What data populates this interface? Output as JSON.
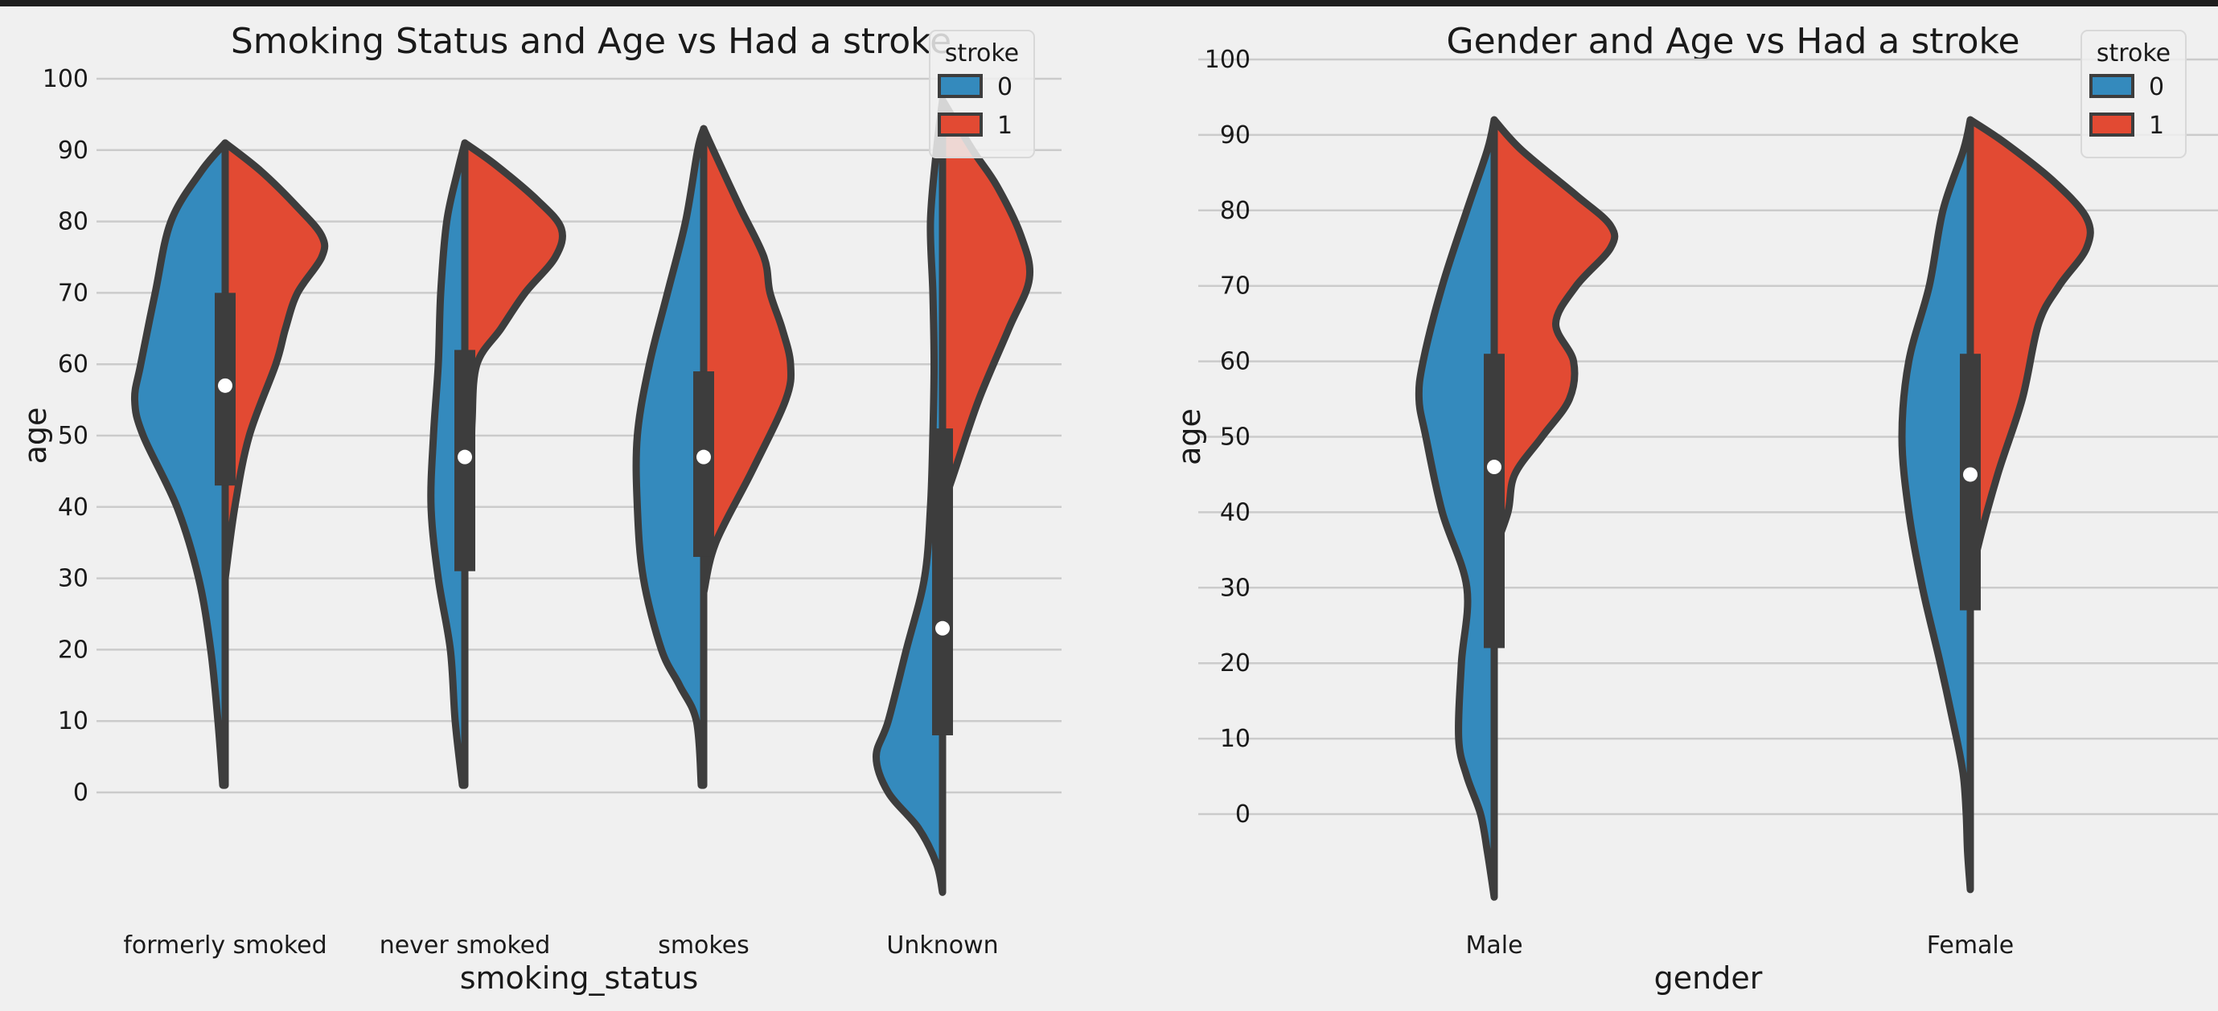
{
  "chart_data": [
    {
      "type": "violin",
      "title": "Smoking Status and Age vs Had a stroke",
      "xlabel": "smoking_status",
      "ylabel": "age",
      "categories": [
        "formerly smoked",
        "never smoked",
        "smokes",
        "Unknown"
      ],
      "yticks": [
        0,
        10,
        20,
        30,
        40,
        50,
        60,
        70,
        80,
        90,
        100
      ],
      "ylim": [
        -14,
        100
      ],
      "legend": {
        "title": "stroke",
        "placement": "top-right",
        "entries": [
          "0",
          "1"
        ]
      },
      "series": [
        {
          "name": "0",
          "color": "#348abd"
        },
        {
          "name": "1",
          "color": "#e24a33"
        }
      ],
      "grid": "y",
      "violins": [
        {
          "category": "formerly smoked",
          "box": {
            "q1": 43,
            "median": 57,
            "q3": 70,
            "min": 1,
            "max": 91
          },
          "stroke0": [
            [
              1,
              0.02
            ],
            [
              10,
              0.06
            ],
            [
              20,
              0.12
            ],
            [
              30,
              0.22
            ],
            [
              40,
              0.4
            ],
            [
              50,
              0.68
            ],
            [
              55,
              0.75
            ],
            [
              60,
              0.7
            ],
            [
              70,
              0.58
            ],
            [
              80,
              0.45
            ],
            [
              87,
              0.2
            ],
            [
              91,
              0.0
            ]
          ],
          "stroke1": [
            [
              30,
              0.0
            ],
            [
              40,
              0.08
            ],
            [
              50,
              0.2
            ],
            [
              60,
              0.42
            ],
            [
              65,
              0.5
            ],
            [
              70,
              0.6
            ],
            [
              75,
              0.8
            ],
            [
              78,
              0.8
            ],
            [
              82,
              0.6
            ],
            [
              87,
              0.3
            ],
            [
              91,
              0.0
            ]
          ]
        },
        {
          "category": "never smoked",
          "box": {
            "q1": 31,
            "median": 47,
            "q3": 62,
            "min": 1,
            "max": 91
          },
          "stroke0": [
            [
              1,
              0.02
            ],
            [
              10,
              0.08
            ],
            [
              20,
              0.12
            ],
            [
              30,
              0.22
            ],
            [
              40,
              0.28
            ],
            [
              50,
              0.26
            ],
            [
              60,
              0.22
            ],
            [
              70,
              0.2
            ],
            [
              80,
              0.15
            ],
            [
              87,
              0.06
            ],
            [
              91,
              0.0
            ]
          ],
          "stroke1": [
            [
              38,
              0.0
            ],
            [
              45,
              0.05
            ],
            [
              52,
              0.06
            ],
            [
              60,
              0.1
            ],
            [
              65,
              0.3
            ],
            [
              70,
              0.5
            ],
            [
              75,
              0.75
            ],
            [
              79,
              0.8
            ],
            [
              83,
              0.6
            ],
            [
              88,
              0.25
            ],
            [
              91,
              0.0
            ]
          ]
        },
        {
          "category": "smokes",
          "box": {
            "q1": 33,
            "median": 47,
            "q3": 59,
            "min": 1,
            "max": 93
          },
          "stroke0": [
            [
              1,
              0.02
            ],
            [
              10,
              0.06
            ],
            [
              15,
              0.2
            ],
            [
              20,
              0.35
            ],
            [
              30,
              0.5
            ],
            [
              40,
              0.55
            ],
            [
              50,
              0.55
            ],
            [
              60,
              0.45
            ],
            [
              70,
              0.3
            ],
            [
              80,
              0.15
            ],
            [
              90,
              0.05
            ],
            [
              93,
              0.0
            ]
          ],
          "stroke1": [
            [
              28,
              0.0
            ],
            [
              35,
              0.1
            ],
            [
              45,
              0.4
            ],
            [
              55,
              0.68
            ],
            [
              60,
              0.72
            ],
            [
              65,
              0.65
            ],
            [
              70,
              0.55
            ],
            [
              75,
              0.5
            ],
            [
              82,
              0.3
            ],
            [
              90,
              0.08
            ],
            [
              93,
              0.0
            ]
          ]
        },
        {
          "category": "Unknown",
          "box": {
            "q1": 8,
            "median": 23,
            "q3": 51,
            "min": -14,
            "max": 97
          },
          "stroke0": [
            [
              -14,
              0.0
            ],
            [
              -10,
              0.05
            ],
            [
              -5,
              0.2
            ],
            [
              0,
              0.45
            ],
            [
              5,
              0.55
            ],
            [
              10,
              0.45
            ],
            [
              20,
              0.3
            ],
            [
              30,
              0.15
            ],
            [
              40,
              0.1
            ],
            [
              50,
              0.08
            ],
            [
              60,
              0.07
            ],
            [
              70,
              0.08
            ],
            [
              80,
              0.1
            ],
            [
              90,
              0.05
            ],
            [
              97,
              0.0
            ]
          ],
          "stroke1": [
            [
              40,
              0.0
            ],
            [
              45,
              0.1
            ],
            [
              55,
              0.3
            ],
            [
              65,
              0.55
            ],
            [
              72,
              0.72
            ],
            [
              78,
              0.65
            ],
            [
              85,
              0.45
            ],
            [
              90,
              0.25
            ],
            [
              97,
              0.0
            ]
          ]
        }
      ]
    },
    {
      "type": "violin",
      "title": "Gender and Age vs Had a stroke",
      "xlabel": "gender",
      "ylabel": "age",
      "categories": [
        "Male",
        "Female"
      ],
      "yticks": [
        0,
        10,
        20,
        30,
        40,
        50,
        60,
        70,
        80,
        90,
        100
      ],
      "ylim": [
        -11,
        100
      ],
      "legend": {
        "title": "stroke",
        "placement": "top-right",
        "entries": [
          "0",
          "1"
        ]
      },
      "series": [
        {
          "name": "0",
          "color": "#348abd"
        },
        {
          "name": "1",
          "color": "#e24a33"
        }
      ],
      "grid": "y",
      "violins": [
        {
          "category": "Male",
          "box": {
            "q1": 22,
            "median": 46,
            "q3": 61,
            "min": -11,
            "max": 92
          },
          "stroke0": [
            [
              -11,
              0.0
            ],
            [
              -5,
              0.05
            ],
            [
              0,
              0.1
            ],
            [
              5,
              0.2
            ],
            [
              10,
              0.26
            ],
            [
              20,
              0.24
            ],
            [
              30,
              0.2
            ],
            [
              40,
              0.38
            ],
            [
              50,
              0.5
            ],
            [
              55,
              0.55
            ],
            [
              60,
              0.52
            ],
            [
              70,
              0.38
            ],
            [
              80,
              0.2
            ],
            [
              88,
              0.05
            ],
            [
              92,
              0.0
            ]
          ],
          "stroke1": [
            [
              35,
              0.0
            ],
            [
              40,
              0.1
            ],
            [
              45,
              0.15
            ],
            [
              50,
              0.35
            ],
            [
              55,
              0.55
            ],
            [
              60,
              0.58
            ],
            [
              65,
              0.45
            ],
            [
              70,
              0.6
            ],
            [
              75,
              0.85
            ],
            [
              78,
              0.85
            ],
            [
              82,
              0.6
            ],
            [
              88,
              0.2
            ],
            [
              92,
              0.0
            ]
          ]
        },
        {
          "category": "Female",
          "box": {
            "q1": 27,
            "median": 45,
            "q3": 61,
            "min": -10,
            "max": 92
          },
          "stroke0": [
            [
              -10,
              0.0
            ],
            [
              -5,
              0.02
            ],
            [
              0,
              0.03
            ],
            [
              5,
              0.05
            ],
            [
              10,
              0.1
            ],
            [
              20,
              0.22
            ],
            [
              30,
              0.35
            ],
            [
              40,
              0.45
            ],
            [
              50,
              0.5
            ],
            [
              60,
              0.45
            ],
            [
              70,
              0.3
            ],
            [
              80,
              0.2
            ],
            [
              88,
              0.05
            ],
            [
              92,
              0.0
            ]
          ],
          "stroke1": [
            [
              30,
              0.0
            ],
            [
              35,
              0.05
            ],
            [
              45,
              0.2
            ],
            [
              55,
              0.38
            ],
            [
              65,
              0.5
            ],
            [
              70,
              0.65
            ],
            [
              75,
              0.85
            ],
            [
              79,
              0.85
            ],
            [
              84,
              0.6
            ],
            [
              89,
              0.25
            ],
            [
              92,
              0.0
            ]
          ]
        }
      ]
    }
  ]
}
